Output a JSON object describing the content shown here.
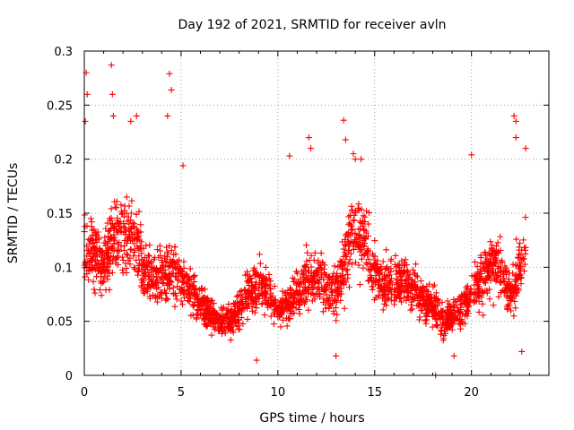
{
  "chart_data": {
    "type": "scatter",
    "title": "Day 192 of 2021, SRMTID for receiver avln",
    "xlabel": "GPS time / hours",
    "ylabel": "SRMTID / TECUs",
    "xlim": [
      0,
      24
    ],
    "ylim": [
      0,
      0.3
    ],
    "x_ticks": [
      0,
      5,
      10,
      15,
      20
    ],
    "x_tick_labels": [
      "0",
      "5",
      "10",
      "15",
      "20"
    ],
    "y_ticks": [
      0,
      0.05,
      0.1,
      0.15,
      0.2,
      0.25,
      0.3
    ],
    "y_tick_labels": [
      "0",
      "0.05",
      "0.1",
      "0.15",
      "0.2",
      "0.25",
      "0.3"
    ],
    "grid": true,
    "marker": "plus",
    "color": "#ff0000",
    "trend": [
      {
        "x": 0.0,
        "y": 0.12
      },
      {
        "x": 0.5,
        "y": 0.11
      },
      {
        "x": 1.0,
        "y": 0.1
      },
      {
        "x": 1.5,
        "y": 0.13
      },
      {
        "x": 2.0,
        "y": 0.13
      },
      {
        "x": 2.5,
        "y": 0.13
      },
      {
        "x": 3.0,
        "y": 0.1
      },
      {
        "x": 3.5,
        "y": 0.09
      },
      {
        "x": 4.0,
        "y": 0.09
      },
      {
        "x": 4.5,
        "y": 0.1
      },
      {
        "x": 5.0,
        "y": 0.09
      },
      {
        "x": 5.5,
        "y": 0.08
      },
      {
        "x": 6.0,
        "y": 0.065
      },
      {
        "x": 6.5,
        "y": 0.055
      },
      {
        "x": 7.0,
        "y": 0.05
      },
      {
        "x": 7.5,
        "y": 0.05
      },
      {
        "x": 8.0,
        "y": 0.06
      },
      {
        "x": 8.5,
        "y": 0.08
      },
      {
        "x": 9.0,
        "y": 0.085
      },
      {
        "x": 9.5,
        "y": 0.075
      },
      {
        "x": 10.0,
        "y": 0.06
      },
      {
        "x": 10.5,
        "y": 0.065
      },
      {
        "x": 11.0,
        "y": 0.075
      },
      {
        "x": 11.5,
        "y": 0.085
      },
      {
        "x": 12.0,
        "y": 0.09
      },
      {
        "x": 12.5,
        "y": 0.085
      },
      {
        "x": 13.0,
        "y": 0.075
      },
      {
        "x": 13.5,
        "y": 0.11
      },
      {
        "x": 14.0,
        "y": 0.14
      },
      {
        "x": 14.5,
        "y": 0.125
      },
      {
        "x": 15.0,
        "y": 0.1
      },
      {
        "x": 15.5,
        "y": 0.085
      },
      {
        "x": 16.0,
        "y": 0.085
      },
      {
        "x": 16.5,
        "y": 0.085
      },
      {
        "x": 17.0,
        "y": 0.08
      },
      {
        "x": 17.5,
        "y": 0.07
      },
      {
        "x": 18.0,
        "y": 0.065
      },
      {
        "x": 18.5,
        "y": 0.05
      },
      {
        "x": 19.0,
        "y": 0.055
      },
      {
        "x": 19.5,
        "y": 0.06
      },
      {
        "x": 20.0,
        "y": 0.075
      },
      {
        "x": 20.5,
        "y": 0.09
      },
      {
        "x": 21.0,
        "y": 0.105
      },
      {
        "x": 21.5,
        "y": 0.1
      },
      {
        "x": 22.0,
        "y": 0.075
      },
      {
        "x": 22.5,
        "y": 0.1
      },
      {
        "x": 22.8,
        "y": 0.12
      }
    ],
    "spikes": [
      {
        "x": 0.1,
        "y": 0.28
      },
      {
        "x": 0.15,
        "y": 0.26
      },
      {
        "x": 0.05,
        "y": 0.235
      },
      {
        "x": 1.4,
        "y": 0.287
      },
      {
        "x": 1.45,
        "y": 0.26
      },
      {
        "x": 1.5,
        "y": 0.24
      },
      {
        "x": 2.4,
        "y": 0.235
      },
      {
        "x": 2.7,
        "y": 0.24
      },
      {
        "x": 4.4,
        "y": 0.279
      },
      {
        "x": 4.5,
        "y": 0.264
      },
      {
        "x": 4.3,
        "y": 0.24
      },
      {
        "x": 5.1,
        "y": 0.194
      },
      {
        "x": 10.6,
        "y": 0.203
      },
      {
        "x": 11.6,
        "y": 0.22
      },
      {
        "x": 11.7,
        "y": 0.21
      },
      {
        "x": 13.4,
        "y": 0.236
      },
      {
        "x": 13.5,
        "y": 0.218
      },
      {
        "x": 13.9,
        "y": 0.205
      },
      {
        "x": 14.0,
        "y": 0.2
      },
      {
        "x": 14.3,
        "y": 0.2
      },
      {
        "x": 20.0,
        "y": 0.204
      },
      {
        "x": 22.2,
        "y": 0.24
      },
      {
        "x": 22.3,
        "y": 0.235
      },
      {
        "x": 22.3,
        "y": 0.22
      },
      {
        "x": 22.8,
        "y": 0.21
      },
      {
        "x": 8.9,
        "y": 0.014
      },
      {
        "x": 19.1,
        "y": 0.018
      },
      {
        "x": 13.0,
        "y": 0.018
      },
      {
        "x": 22.6,
        "y": 0.022
      },
      {
        "x": 18.15,
        "y": 0.0
      }
    ]
  }
}
